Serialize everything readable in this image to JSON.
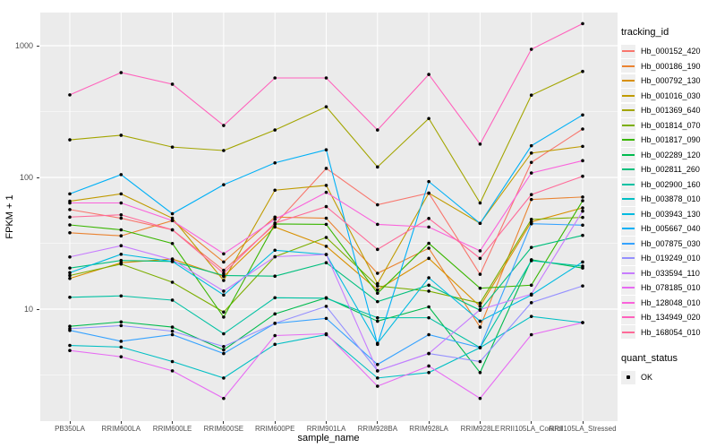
{
  "axis": {
    "y_title": "FPKM + 1",
    "x_title": "sample_name",
    "y_tick_labels": [
      "10",
      "100",
      "1000"
    ]
  },
  "legend": {
    "tracking_title": "tracking_id",
    "quant_title": "quant_status",
    "quant_ok_label": "OK"
  },
  "colors": {
    "panel_bg": "#EBEBEB",
    "grid": "#FFFFFF",
    "point": "#000000",
    "axis_text": "#4D4D4D",
    "legend_key_bg": "#EFEFEF"
  },
  "chart_data": {
    "type": "line",
    "title": "",
    "xlabel": "sample_name",
    "ylabel": "FPKM + 1",
    "yscale": "log10",
    "ylim": [
      1.5,
      1800
    ],
    "y_ticks": [
      10,
      100,
      1000
    ],
    "grid": "white major + minor half-decade lines on grey panel",
    "legend_position": "right",
    "point_marker": "black dot on every vertex",
    "categories": [
      "PB350LA",
      "RRIM600LA",
      "RRIM600LE",
      "RRIM600SE",
      "RRIM600PE",
      "RRIM901LA",
      "RRIM928BA",
      "RRIM928LA",
      "RRIM928LE",
      "RRII105LA_Control",
      "RRII105LA_Stressed"
    ],
    "series": [
      {
        "name": "Hb_000152_420",
        "color": "#F8766D",
        "values": [
          57,
          49,
          40,
          19.7,
          44,
          117,
          62,
          76,
          18.4,
          130,
          233
        ]
      },
      {
        "name": "Hb_000186_190",
        "color": "#EA8331",
        "values": [
          38,
          36,
          47,
          22.8,
          50,
          49,
          18.7,
          29,
          7.3,
          68,
          71
        ]
      },
      {
        "name": "Hb_000792_130",
        "color": "#D89000",
        "values": [
          17.1,
          22.5,
          24,
          17.7,
          42,
          30,
          14,
          24.3,
          10.5,
          46,
          58.7
        ]
      },
      {
        "name": "Hb_001016_030",
        "color": "#C09B00",
        "values": [
          66,
          75,
          49,
          16.5,
          80,
          87,
          15.6,
          76,
          44.8,
          153,
          172
        ]
      },
      {
        "name": "Hb_001369_640",
        "color": "#A3A500",
        "values": [
          193,
          209,
          170,
          160,
          229,
          344,
          120,
          280,
          64,
          421,
          638
        ]
      },
      {
        "name": "Hb_001814_070",
        "color": "#7CAE00",
        "values": [
          18,
          22,
          16,
          9.5,
          25,
          35,
          15,
          13.7,
          11.1,
          48,
          49.7
        ]
      },
      {
        "name": "Hb_001817_090",
        "color": "#39B600",
        "values": [
          43.6,
          40,
          31.5,
          8.7,
          44.3,
          44,
          13.2,
          31.6,
          14.4,
          15.2,
          66.5
        ]
      },
      {
        "name": "Hb_002289_120",
        "color": "#00BB4E",
        "values": [
          7.4,
          8.0,
          7.3,
          4.9,
          9.2,
          12.2,
          8.1,
          10.4,
          3.3,
          23.7,
          20.5
        ]
      },
      {
        "name": "Hb_002811_260",
        "color": "#00BF7D",
        "values": [
          20.5,
          23.4,
          23,
          18,
          17.8,
          22.5,
          11.4,
          15.2,
          9.8,
          29.4,
          36.3
        ]
      },
      {
        "name": "Hb_002900_160",
        "color": "#00C1A3",
        "values": [
          12.3,
          12.6,
          11.7,
          6.5,
          12.2,
          12.1,
          8.6,
          8.6,
          5.1,
          23.3,
          21.2
        ]
      },
      {
        "name": "Hb_003878_010",
        "color": "#00BFC4",
        "values": [
          5.3,
          5.15,
          4.0,
          3.0,
          5.4,
          6.4,
          3.0,
          3.3,
          5.1,
          8.8,
          7.9
        ]
      },
      {
        "name": "Hb_003943_130",
        "color": "#00BAE0",
        "values": [
          18.9,
          26.1,
          23,
          12.8,
          28,
          26,
          5.5,
          17.3,
          8.1,
          12.8,
          22.8
        ]
      },
      {
        "name": "Hb_005667_040",
        "color": "#00B0F6",
        "values": [
          75,
          105,
          53,
          88,
          129,
          162,
          5.4,
          93,
          44.8,
          174,
          298
        ]
      },
      {
        "name": "Hb_007875_030",
        "color": "#35A2FF",
        "values": [
          6.9,
          5.7,
          6.4,
          4.6,
          7.8,
          8.5,
          3.8,
          6.4,
          5.1,
          44.5,
          43.4
        ]
      },
      {
        "name": "Hb_019249_010",
        "color": "#9590FF",
        "values": [
          7.1,
          7.5,
          6.8,
          5.2,
          7.8,
          10.5,
          3.4,
          4.6,
          4.0,
          11.2,
          15.0
        ]
      },
      {
        "name": "Hb_033594_110",
        "color": "#C77CFF",
        "values": [
          24.9,
          30.3,
          23.7,
          13.7,
          25,
          26,
          3.4,
          4.6,
          9.9,
          13.0,
          55.5
        ]
      },
      {
        "name": "Hb_078185_010",
        "color": "#E76BF3",
        "values": [
          4.85,
          4.35,
          3.4,
          2.1,
          6.3,
          6.5,
          2.6,
          3.7,
          2.1,
          6.4,
          7.9
        ]
      },
      {
        "name": "Hb_128048_010",
        "color": "#FA62DB",
        "values": [
          64,
          64,
          47,
          26.3,
          48,
          77,
          44,
          42,
          27.7,
          108,
          134
        ]
      },
      {
        "name": "Hb_134949_020",
        "color": "#FF62BC",
        "values": [
          423,
          625,
          510,
          248,
          569,
          569,
          229,
          605,
          179,
          939,
          1470
        ]
      },
      {
        "name": "Hb_168054_010",
        "color": "#FF6A98",
        "values": [
          50,
          52,
          40,
          18.7,
          45,
          60,
          28.4,
          48.8,
          24.3,
          74,
          102
        ]
      }
    ],
    "quant_status_series": [
      {
        "label": "OK",
        "marker_color": "#000000"
      }
    ]
  }
}
